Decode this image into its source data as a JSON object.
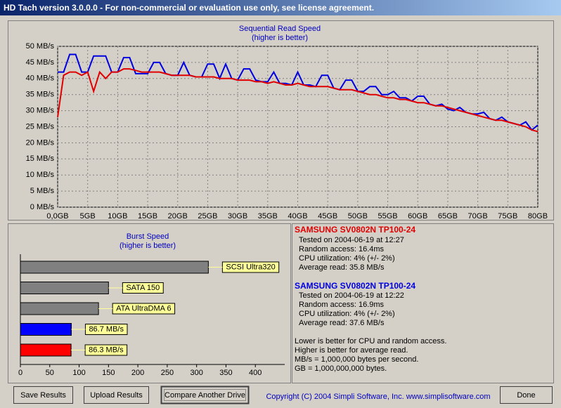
{
  "window": {
    "title": "HD Tach version 3.0.0.0  - For non-commercial or evaluation use only, see license agreement."
  },
  "chart_data": [
    {
      "type": "line",
      "title": "Sequential Read Speed",
      "subtitle": "(higher is better)",
      "x": [
        0,
        1,
        2,
        3,
        4,
        5,
        6,
        7,
        8,
        9,
        10,
        11,
        12,
        13,
        14,
        15,
        16,
        17,
        18,
        19,
        20,
        21,
        22,
        23,
        24,
        25,
        26,
        27,
        28,
        29,
        30,
        31,
        32,
        33,
        34,
        35,
        36,
        37,
        38,
        39,
        40,
        41,
        42,
        43,
        44,
        45,
        46,
        47,
        48,
        49,
        50,
        51,
        52,
        53,
        54,
        55,
        56,
        57,
        58,
        59,
        60,
        61,
        62,
        63,
        64,
        65,
        66,
        67,
        68,
        69,
        70,
        71,
        72,
        73,
        74,
        75,
        76,
        77,
        78,
        79,
        80
      ],
      "series": [
        {
          "color": "#0000e0",
          "values": [
            42,
            42,
            47.5,
            47.5,
            42,
            42,
            47,
            47,
            47,
            42,
            42,
            46.5,
            46.5,
            41.5,
            41.5,
            41.5,
            45,
            45,
            41.5,
            41,
            41,
            45,
            41,
            40.5,
            40.5,
            44.5,
            44.5,
            40,
            44.5,
            40,
            39.5,
            43,
            43,
            39.5,
            39,
            39,
            42,
            38.5,
            38.5,
            38,
            42,
            38,
            38,
            37.5,
            41,
            41,
            37,
            36.5,
            39.5,
            39.5,
            36,
            36,
            37.5,
            37.5,
            35,
            35,
            36,
            34,
            34,
            33,
            34.5,
            34.5,
            32,
            31.5,
            32,
            30.5,
            30,
            31,
            29.5,
            29,
            29,
            29.5,
            27.5,
            27,
            28,
            26.5,
            26,
            25.5,
            26.5,
            24,
            25.5
          ]
        },
        {
          "color": "#e00000",
          "values": [
            28,
            41,
            42,
            42,
            41,
            42,
            36,
            42,
            40,
            42,
            42,
            43,
            43,
            42.5,
            42,
            42,
            42,
            42,
            41.5,
            41,
            41,
            41,
            41,
            40.5,
            40.5,
            40.5,
            40.5,
            40,
            40,
            40,
            39.5,
            39.5,
            39.5,
            39,
            39,
            38.5,
            39,
            38.5,
            38,
            38,
            38.5,
            38,
            37.5,
            37.5,
            37.5,
            37.5,
            37,
            36.5,
            36.5,
            36.5,
            36,
            35.5,
            35,
            35,
            34.5,
            34,
            34,
            33.5,
            33.5,
            33,
            32.5,
            32.5,
            32,
            31.5,
            31.5,
            31,
            30.5,
            30,
            29.5,
            29,
            28.5,
            28,
            27.5,
            27,
            27,
            26.5,
            26,
            25.5,
            25,
            24,
            23.5
          ]
        }
      ],
      "xlim": [
        0,
        80
      ],
      "xticks": [
        {
          "value": 0,
          "label": "0,0GB"
        },
        {
          "value": 5,
          "label": "5GB"
        },
        {
          "value": 10,
          "label": "10GB"
        },
        {
          "value": 15,
          "label": "15GB"
        },
        {
          "value": 20,
          "label": "20GB"
        },
        {
          "value": 25,
          "label": "25GB"
        },
        {
          "value": 30,
          "label": "30GB"
        },
        {
          "value": 35,
          "label": "35GB"
        },
        {
          "value": 40,
          "label": "40GB"
        },
        {
          "value": 45,
          "label": "45GB"
        },
        {
          "value": 50,
          "label": "50GB"
        },
        {
          "value": 55,
          "label": "55GB"
        },
        {
          "value": 60,
          "label": "60GB"
        },
        {
          "value": 65,
          "label": "65GB"
        },
        {
          "value": 70,
          "label": "70GB"
        },
        {
          "value": 75,
          "label": "75GB"
        },
        {
          "value": 80,
          "label": "80GB"
        }
      ],
      "ylim": [
        0,
        50
      ],
      "yticks": [
        {
          "value": 0,
          "label": "0 MB/s"
        },
        {
          "value": 5,
          "label": "5 MB/s"
        },
        {
          "value": 10,
          "label": "10 MB/s"
        },
        {
          "value": 15,
          "label": "15 MB/s"
        },
        {
          "value": 20,
          "label": "20 MB/s"
        },
        {
          "value": 25,
          "label": "25 MB/s"
        },
        {
          "value": 30,
          "label": "30 MB/s"
        },
        {
          "value": 35,
          "label": "35 MB/s"
        },
        {
          "value": 40,
          "label": "40 MB/s"
        },
        {
          "value": 45,
          "label": "45 MB/s"
        },
        {
          "value": 50,
          "label": "50 MB/s"
        }
      ],
      "grid": true
    },
    {
      "type": "hbar",
      "title": "Burst Speed",
      "subtitle": "(higher is better)",
      "categories": [
        "SCSI Ultra320",
        "SATA 150",
        "ATA UltraDMA 6",
        null,
        null
      ],
      "values": [
        320,
        150,
        133,
        86.7,
        86.3
      ],
      "value_labels": [
        null,
        null,
        null,
        "86.7 MB/s",
        "86.3 MB/s"
      ],
      "colors": [
        "#808080",
        "#808080",
        "#808080",
        "#0000ff",
        "#ff0000"
      ],
      "xlim": [
        0,
        450
      ],
      "xticks": [
        0,
        50,
        100,
        150,
        200,
        250,
        300,
        350,
        400
      ]
    }
  ],
  "info": {
    "drives": [
      {
        "name": "SAMSUNG SV0802N TP100-24",
        "tested": "Tested on 2004-06-19 at 12:27",
        "random": "Random access: 16.4ms",
        "cpu": "CPU utilization: 4% (+/- 2%)",
        "average": "Average read: 35.8 MB/s"
      },
      {
        "name": "SAMSUNG SV0802N TP100-24",
        "tested": "Tested on 2004-06-19 at 12:22",
        "random": "Random access: 16.9ms",
        "cpu": "CPU utilization: 4% (+/- 2%)",
        "average": "Average read: 37.6 MB/s"
      }
    ],
    "notes": [
      "Lower is better for CPU and random access.",
      "Higher is better for average read.",
      "MB/s = 1,000,000 bytes per second.",
      "GB = 1,000,000,000 bytes."
    ]
  },
  "buttons": [
    "Save Results",
    "Upload Results",
    "Compare Another Drive",
    "Done"
  ],
  "copyright": "Copyright (C) 2004 Simpli Software, Inc. www.simplisoftware.com"
}
